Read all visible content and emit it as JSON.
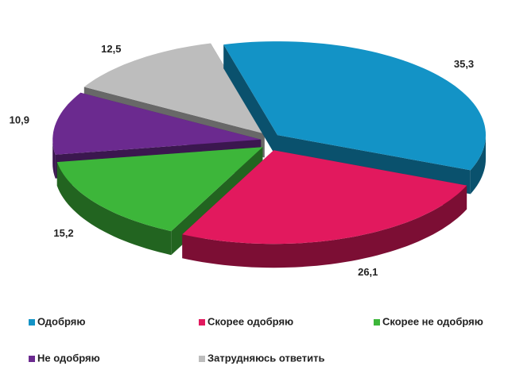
{
  "chart_data": {
    "type": "pie3d",
    "categories": [
      "Одобряю",
      "Скорее одобряю",
      "Скорее не одобряю",
      "Не одобряю",
      "Затрудняюсь ответить"
    ],
    "values": [
      35.3,
      26.1,
      15.2,
      10.9,
      12.5
    ],
    "value_labels": [
      "35,3",
      "26,1",
      "15,2",
      "10,9",
      "12,5"
    ],
    "colors": [
      "#1393c6",
      "#e2195e",
      "#3db63a",
      "#6b2a8f",
      "#bdbdbd"
    ],
    "legend": "bottom"
  }
}
